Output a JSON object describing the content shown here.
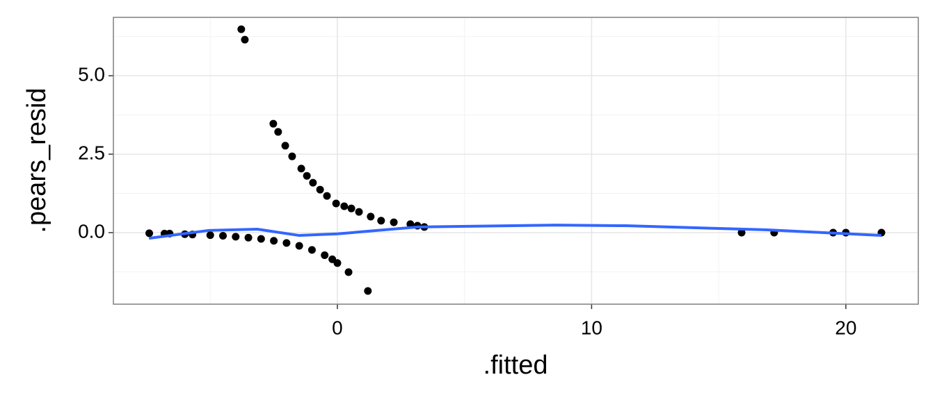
{
  "chart_data": {
    "type": "scatter",
    "x_label": ".fitted",
    "y_label": ".pears_resid",
    "xlim": [
      -8.81,
      22.85
    ],
    "ylim": [
      -2.28,
      6.86
    ],
    "xticks": [
      0,
      10,
      20
    ],
    "yticks": [
      {
        "value": 0,
        "label": "0.0"
      },
      2.5,
      {
        "value": 5,
        "label": "5.0"
      }
    ],
    "x_minor_ticks": [
      -5,
      5,
      15
    ],
    "y_minor_ticks": [
      -1.25,
      1.25,
      3.75,
      6.25
    ],
    "grid": true,
    "series": [
      {
        "mode": "points",
        "color": "#000000",
        "x": [
          -7.4,
          -6.8,
          -6.6,
          -6.0,
          -5.7,
          -5.0,
          -4.5,
          -4.0,
          -3.5,
          -3.0,
          -2.5,
          -2.0,
          -1.5,
          -1.0,
          -0.5,
          -0.2,
          0,
          0.44,
          1.2,
          -3.78,
          -3.64,
          -2.52,
          -2.33,
          -2.05,
          -1.78,
          -1.42,
          -1.2,
          -0.96,
          -0.68,
          -0.41,
          -0.05,
          0.27,
          0.55,
          0.85,
          1.31,
          1.72,
          2.22,
          2.87,
          3.15,
          3.42,
          15.9,
          17.18,
          19.5,
          20.0,
          21.4
        ],
        "values": [
          -0.02,
          -0.03,
          -0.03,
          -0.05,
          -0.06,
          -0.08,
          -0.1,
          -0.13,
          -0.16,
          -0.2,
          -0.26,
          -0.33,
          -0.42,
          -0.55,
          -0.72,
          -0.85,
          -0.97,
          -1.26,
          -1.86,
          6.48,
          6.15,
          3.47,
          3.21,
          2.77,
          2.43,
          2.04,
          1.81,
          1.59,
          1.37,
          1.17,
          0.93,
          0.84,
          0.77,
          0.66,
          0.51,
          0.38,
          0.33,
          0.27,
          0.22,
          0.18,
          0,
          0,
          0,
          0,
          0
        ]
      },
      {
        "mode": "line",
        "color": "#3366ff",
        "x": [
          -7.41,
          -5.06,
          -3.15,
          -1.5,
          0,
          3.15,
          8.62,
          11.35,
          16.83,
          21.4
        ],
        "values": [
          -0.18,
          0.07,
          0.11,
          -0.09,
          -0.04,
          0.18,
          0.24,
          0.22,
          0.09,
          -0.09
        ]
      }
    ]
  }
}
